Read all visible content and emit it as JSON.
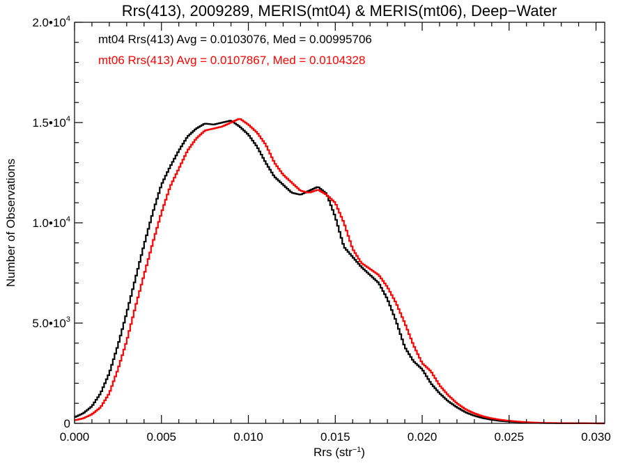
{
  "chart_data": {
    "type": "histogram-step",
    "title": "Rrs(413), 2009289, MERIS(mt04) & MERIS(mt06), Deep−Water",
    "xlabel_text": "Rrs (str",
    "xlabel_sup": "−1",
    "xlabel_close": ")",
    "ylabel": "Number of Observations",
    "xlim": [
      0.0,
      0.0305
    ],
    "ylim": [
      0,
      20000
    ],
    "x_ticks": [
      {
        "value": 0.0,
        "label": "0.000"
      },
      {
        "value": 0.005,
        "label": "0.005"
      },
      {
        "value": 0.01,
        "label": "0.010"
      },
      {
        "value": 0.015,
        "label": "0.015"
      },
      {
        "value": 0.02,
        "label": "0.020"
      },
      {
        "value": 0.025,
        "label": "0.025"
      },
      {
        "value": 0.03,
        "label": "0.030"
      }
    ],
    "y_ticks": [
      {
        "value": 0,
        "base": "0",
        "exp": ""
      },
      {
        "value": 5000,
        "base": "5.0•10",
        "exp": "3"
      },
      {
        "value": 10000,
        "base": "1.0•10",
        "exp": "4"
      },
      {
        "value": 15000,
        "base": "1.5•10",
        "exp": "4"
      },
      {
        "value": 20000,
        "base": "2.0•10",
        "exp": "4"
      }
    ],
    "annotations": [
      {
        "text": "mt04 Rrs(413) Avg = 0.0103076, Med = 0.00995706",
        "color": "#000000"
      },
      {
        "text": "mt06 Rrs(413) Avg = 0.0107867, Med = 0.0104328",
        "color": "#ff0000"
      }
    ],
    "bin_width": 0.0001,
    "grid": false,
    "series": [
      {
        "color": "#000000",
        "points": [
          [
            0.0,
            300
          ],
          [
            0.0005,
            500
          ],
          [
            0.001,
            850
          ],
          [
            0.0015,
            1500
          ],
          [
            0.002,
            2500
          ],
          [
            0.0025,
            3900
          ],
          [
            0.003,
            5500
          ],
          [
            0.0035,
            7200
          ],
          [
            0.004,
            8900
          ],
          [
            0.0045,
            10500
          ],
          [
            0.005,
            11900
          ],
          [
            0.0055,
            12800
          ],
          [
            0.006,
            13600
          ],
          [
            0.0065,
            14300
          ],
          [
            0.007,
            14700
          ],
          [
            0.0075,
            14950
          ],
          [
            0.008,
            14900
          ],
          [
            0.0085,
            15000
          ],
          [
            0.009,
            15100
          ],
          [
            0.0095,
            14800
          ],
          [
            0.01,
            14400
          ],
          [
            0.0105,
            13800
          ],
          [
            0.011,
            13000
          ],
          [
            0.0115,
            12300
          ],
          [
            0.012,
            11900
          ],
          [
            0.0125,
            11500
          ],
          [
            0.013,
            11400
          ],
          [
            0.0135,
            11600
          ],
          [
            0.014,
            11800
          ],
          [
            0.0145,
            11450
          ],
          [
            0.015,
            10300
          ],
          [
            0.0155,
            8800
          ],
          [
            0.016,
            8300
          ],
          [
            0.0165,
            7800
          ],
          [
            0.017,
            7400
          ],
          [
            0.0175,
            7000
          ],
          [
            0.018,
            6200
          ],
          [
            0.0185,
            5100
          ],
          [
            0.019,
            3800
          ],
          [
            0.0195,
            3100
          ],
          [
            0.02,
            2700
          ],
          [
            0.0205,
            2000
          ],
          [
            0.021,
            1500
          ],
          [
            0.0215,
            1100
          ],
          [
            0.022,
            800
          ],
          [
            0.0225,
            550
          ],
          [
            0.023,
            380
          ],
          [
            0.0235,
            260
          ],
          [
            0.024,
            180
          ],
          [
            0.0245,
            120
          ],
          [
            0.025,
            85
          ],
          [
            0.0255,
            60
          ],
          [
            0.026,
            40
          ],
          [
            0.0265,
            25
          ],
          [
            0.027,
            15
          ],
          [
            0.028,
            8
          ],
          [
            0.029,
            4
          ],
          [
            0.0305,
            0
          ]
        ]
      },
      {
        "color": "#ff0000",
        "points": [
          [
            0.0,
            150
          ],
          [
            0.0005,
            250
          ],
          [
            0.001,
            450
          ],
          [
            0.0015,
            800
          ],
          [
            0.002,
            1500
          ],
          [
            0.0025,
            2700
          ],
          [
            0.003,
            4100
          ],
          [
            0.0035,
            5800
          ],
          [
            0.004,
            7400
          ],
          [
            0.0045,
            9000
          ],
          [
            0.005,
            10500
          ],
          [
            0.0055,
            11800
          ],
          [
            0.006,
            12700
          ],
          [
            0.0065,
            13600
          ],
          [
            0.007,
            14200
          ],
          [
            0.0075,
            14600
          ],
          [
            0.008,
            14700
          ],
          [
            0.0085,
            14800
          ],
          [
            0.009,
            15000
          ],
          [
            0.0095,
            15200
          ],
          [
            0.01,
            14900
          ],
          [
            0.0105,
            14500
          ],
          [
            0.011,
            13900
          ],
          [
            0.0115,
            13000
          ],
          [
            0.012,
            12400
          ],
          [
            0.0125,
            12000
          ],
          [
            0.013,
            11600
          ],
          [
            0.0135,
            11500
          ],
          [
            0.014,
            11650
          ],
          [
            0.0145,
            11400
          ],
          [
            0.015,
            11000
          ],
          [
            0.0155,
            10000
          ],
          [
            0.016,
            8700
          ],
          [
            0.0165,
            8000
          ],
          [
            0.017,
            7700
          ],
          [
            0.0175,
            7400
          ],
          [
            0.018,
            6800
          ],
          [
            0.0185,
            6000
          ],
          [
            0.019,
            5000
          ],
          [
            0.0195,
            3900
          ],
          [
            0.02,
            3000
          ],
          [
            0.0205,
            2600
          ],
          [
            0.021,
            1900
          ],
          [
            0.0215,
            1400
          ],
          [
            0.022,
            1000
          ],
          [
            0.0225,
            700
          ],
          [
            0.023,
            500
          ],
          [
            0.0235,
            350
          ],
          [
            0.024,
            250
          ],
          [
            0.0245,
            180
          ],
          [
            0.025,
            130
          ],
          [
            0.0255,
            90
          ],
          [
            0.026,
            60
          ],
          [
            0.0265,
            40
          ],
          [
            0.027,
            25
          ],
          [
            0.028,
            12
          ],
          [
            0.029,
            5
          ],
          [
            0.0305,
            0
          ]
        ]
      }
    ]
  }
}
